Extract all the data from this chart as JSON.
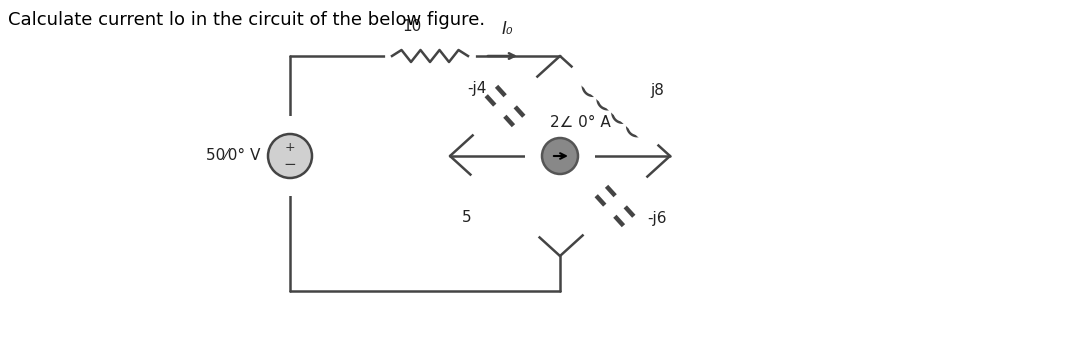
{
  "title": "Calculate current lo in the circuit of the below figure.",
  "title_fontsize": 13,
  "wire_color": "#444444",
  "fig_width": 10.8,
  "fig_height": 3.41,
  "labels": {
    "resistor_top": "10",
    "capacitor_left": "-j4",
    "inductor_right": "j8",
    "current_source": "2∠ 0° A",
    "resistor_bot": "5",
    "capacitor_bot": "-j6",
    "voltage_source": "50⁄0° V",
    "current_label": "I₀"
  }
}
